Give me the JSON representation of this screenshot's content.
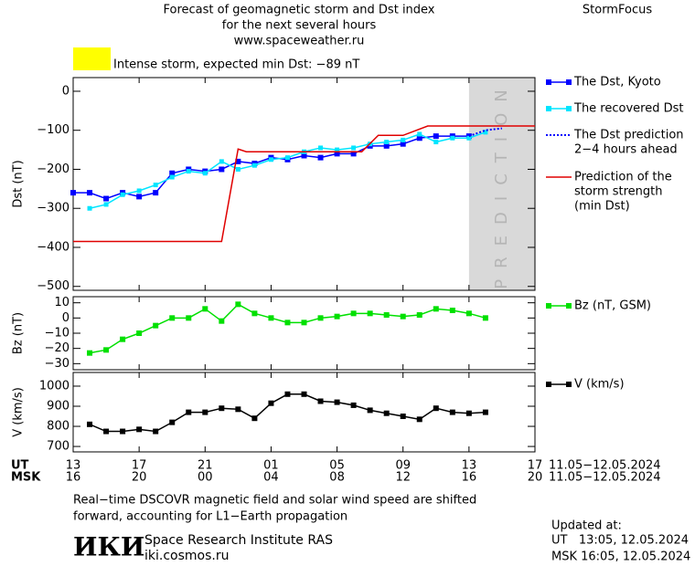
{
  "title": [
    "Forecast of geomagnetic storm and Dst index",
    "for the next several hours",
    "www.spaceweather.ru"
  ],
  "brand": "StormFocus",
  "alert": {
    "text": "Intense storm, expected min Dst: −89 nT",
    "color": "#ffff00"
  },
  "chart_data": [
    {
      "type": "line",
      "ylabel": "Dst (nT)",
      "xlim": [
        0,
        28
      ],
      "ylim": [
        -510,
        35
      ],
      "yticks": [
        0,
        {
          "value": -100,
          "label": "−100"
        },
        {
          "value": -200,
          "label": "−200"
        },
        {
          "value": -300,
          "label": "−300"
        },
        {
          "value": -400,
          "label": "−400"
        },
        {
          "value": -500,
          "label": "−500"
        }
      ],
      "prediction_region": {
        "label": "PREDICTION",
        "x": [
          24,
          28
        ],
        "color": "#d9d9d9"
      },
      "series": [
        {
          "name": [
            "The Dst, Kyoto"
          ],
          "color": "#0000ff",
          "marker": "square",
          "style": "solid",
          "x": [
            0,
            1,
            2,
            3,
            4,
            5,
            6,
            7,
            8,
            9,
            10,
            11,
            12,
            13,
            14,
            15,
            16,
            17,
            18,
            19,
            20,
            21,
            22,
            23,
            24
          ],
          "values": [
            -260,
            -260,
            -275,
            -260,
            -270,
            -260,
            -210,
            -200,
            -205,
            -200,
            -180,
            -185,
            -170,
            -175,
            -165,
            -170,
            -160,
            -160,
            -140,
            -140,
            -135,
            -120,
            -115,
            -115,
            -115
          ]
        },
        {
          "name": [
            "The recovered Dst"
          ],
          "color": "#00e5ff",
          "marker": "square",
          "style": "solid",
          "x": [
            1,
            2,
            3,
            4,
            5,
            6,
            7,
            8,
            9,
            10,
            11,
            12,
            13,
            14,
            15,
            16,
            17,
            18,
            19,
            20,
            21,
            22,
            23,
            24,
            25
          ],
          "values": [
            -300,
            -290,
            -265,
            -255,
            -240,
            -220,
            -205,
            -210,
            -180,
            -200,
            -190,
            -175,
            -170,
            -155,
            -145,
            -150,
            -145,
            -135,
            -130,
            -125,
            -110,
            -130,
            -120,
            -120,
            -105
          ]
        },
        {
          "name": [
            "The Dst prediction",
            "2−4 hours ahead"
          ],
          "color": "#0000ff",
          "marker": "none",
          "style": "dotted",
          "x": [
            24,
            25,
            26
          ],
          "values": [
            -115,
            -100,
            -95
          ]
        },
        {
          "name": [
            "Prediction of the",
            "storm strength",
            "(min Dst)"
          ],
          "color": "#e00000",
          "marker": "none",
          "style": "solid",
          "x": [
            0,
            9,
            10,
            10.5,
            17.5,
            18.5,
            20,
            21.5,
            28
          ],
          "values": [
            -385,
            -385,
            -148,
            -155,
            -155,
            -113,
            -113,
            -89,
            -89
          ]
        }
      ]
    },
    {
      "type": "line",
      "ylabel": "Bz (nT)",
      "xlim": [
        0,
        28
      ],
      "ylim": [
        -34,
        14
      ],
      "yticks": [
        10,
        0,
        {
          "value": -10,
          "label": "−10"
        },
        {
          "value": -20,
          "label": "−20"
        },
        {
          "value": -30,
          "label": "−30"
        }
      ],
      "series": [
        {
          "name": [
            "Bz (nT, GSM)"
          ],
          "color": "#00e000",
          "marker": "square",
          "style": "solid",
          "x": [
            1,
            2,
            3,
            4,
            5,
            6,
            7,
            8,
            9,
            10,
            11,
            12,
            13,
            14,
            15,
            16,
            17,
            18,
            19,
            20,
            21,
            22,
            23,
            24,
            25
          ],
          "values": [
            -23,
            -21,
            -14,
            -10,
            -5,
            0,
            0,
            6,
            -2,
            9,
            3,
            0,
            -3,
            -3,
            0,
            1,
            3,
            3,
            2,
            1,
            2,
            6,
            5,
            3,
            0
          ]
        }
      ]
    },
    {
      "type": "line",
      "ylabel": "V (km/s)",
      "xlim": [
        0,
        28
      ],
      "ylim": [
        673,
        1068
      ],
      "yticks": [
        1000,
        900,
        800,
        700
      ],
      "xticks": [
        {
          "value": 0,
          "label": "13"
        },
        {
          "value": 4,
          "label": "17"
        },
        {
          "value": 8,
          "label": "21"
        },
        {
          "value": 12,
          "label": "01"
        },
        {
          "value": 16,
          "label": "05"
        },
        {
          "value": 20,
          "label": "09"
        },
        {
          "value": 24,
          "label": "13"
        },
        {
          "value": 28,
          "label": "17"
        }
      ],
      "xticks2": [
        {
          "value": 0,
          "label": "16"
        },
        {
          "value": 4,
          "label": "20"
        },
        {
          "value": 8,
          "label": "00"
        },
        {
          "value": 12,
          "label": "04"
        },
        {
          "value": 16,
          "label": "08"
        },
        {
          "value": 20,
          "label": "12"
        },
        {
          "value": 24,
          "label": "16"
        },
        {
          "value": 28,
          "label": "20"
        }
      ],
      "xrow_labels": [
        "UT",
        "MSK"
      ],
      "date_range": "11.05−12.05.2024",
      "series": [
        {
          "name": [
            "V (km/s)"
          ],
          "color": "#000000",
          "marker": "square",
          "style": "solid",
          "x": [
            1,
            2,
            3,
            4,
            5,
            6,
            7,
            8,
            9,
            10,
            11,
            12,
            13,
            14,
            15,
            16,
            17,
            18,
            19,
            20,
            21,
            22,
            23,
            24,
            25
          ],
          "values": [
            810,
            775,
            775,
            785,
            775,
            820,
            870,
            870,
            890,
            885,
            840,
            915,
            960,
            960,
            925,
            920,
            905,
            880,
            865,
            850,
            835,
            890,
            870,
            865,
            870
          ]
        }
      ]
    }
  ],
  "footer": {
    "note": [
      "Real−time DSCOVR magnetic field and solar wind speed are shifted",
      "forward, accounting for L1−Earth propagation"
    ],
    "logo": "ИКИ",
    "institute": "Space Research Institute RAS",
    "site": "iki.cosmos.ru",
    "updated": [
      "Updated at:",
      "UT   13:05, 12.05.2024",
      "MSK 16:05, 12.05.2024"
    ]
  }
}
